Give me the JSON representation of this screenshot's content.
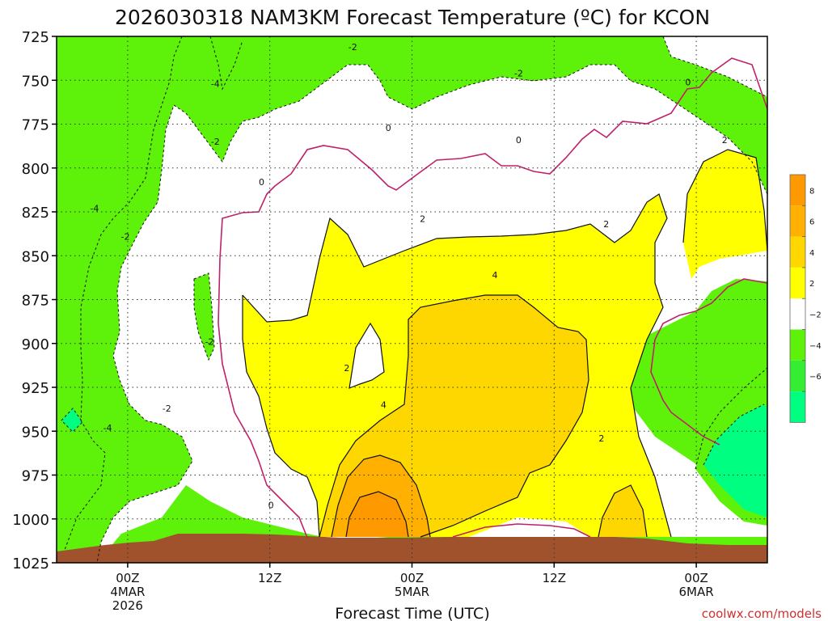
{
  "colors": {
    "band_lt_m6": "#00ff80",
    "band_m6_m4": "#33ee33",
    "band_m4_m2": "#5ef20a",
    "band_m2_2": "#ffffff",
    "band_2_4": "#ffff00",
    "band_4_6": "#ffd700",
    "band_6_8": "#ffb000",
    "band_gt_8": "#ff9900",
    "zero_line": "#c0206a",
    "terrain": "#a0522d",
    "credit": "#d03030"
  },
  "chart_data": {
    "type": "heatmap",
    "title": "2026030318 NAM3KM Forecast Temperature (ºC) for KCON",
    "xlabel": "Forecast Time (UTC)",
    "ylabel": "",
    "y_axis": {
      "unit": "hPa",
      "ticks": [
        725,
        750,
        775,
        800,
        825,
        850,
        875,
        900,
        925,
        950,
        975,
        1000,
        1025
      ],
      "range": [
        725,
        1025
      ],
      "inverted": true,
      "grid": true
    },
    "x_axis": {
      "range_hours": [
        -6,
        54
      ],
      "grid": true,
      "ticks": [
        {
          "hour": 0,
          "lines": [
            "00Z",
            "4MAR",
            "2026"
          ]
        },
        {
          "hour": 12,
          "lines": [
            "12Z"
          ]
        },
        {
          "hour": 24,
          "lines": [
            "00Z",
            "5MAR"
          ]
        },
        {
          "hour": 36,
          "lines": [
            "12Z"
          ]
        },
        {
          "hour": 48,
          "lines": [
            "00Z",
            "6MAR"
          ]
        }
      ]
    },
    "colorbar": {
      "levels": [
        -6,
        -4,
        -2,
        2,
        4,
        6,
        8
      ],
      "labels": [
        "8",
        "6",
        "4",
        "2",
        "−2",
        "−4",
        "−6"
      ]
    },
    "contour_labels": [
      {
        "text": "-2",
        "hour": 19.0,
        "p": 731
      },
      {
        "text": "-2",
        "hour": 33.0,
        "p": 746
      },
      {
        "text": "-4",
        "hour": 7.4,
        "p": 752
      },
      {
        "text": "-2",
        "hour": 7.4,
        "p": 785
      },
      {
        "text": "0",
        "hour": 22.0,
        "p": 777
      },
      {
        "text": "0",
        "hour": 33.0,
        "p": 784
      },
      {
        "text": "0",
        "hour": 47.3,
        "p": 751
      },
      {
        "text": "2",
        "hour": 50.4,
        "p": 784
      },
      {
        "text": "0",
        "hour": 11.3,
        "p": 808
      },
      {
        "text": "-4",
        "hour": -2.8,
        "p": 823
      },
      {
        "text": "-2",
        "hour": -0.2,
        "p": 839
      },
      {
        "text": "2",
        "hour": 24.9,
        "p": 829
      },
      {
        "text": "2",
        "hour": 40.4,
        "p": 832
      },
      {
        "text": "4",
        "hour": 31.0,
        "p": 861
      },
      {
        "text": "-2",
        "hour": 6.9,
        "p": 899
      },
      {
        "text": "2",
        "hour": 18.5,
        "p": 914
      },
      {
        "text": "-2",
        "hour": 3.3,
        "p": 937
      },
      {
        "text": "4",
        "hour": 21.6,
        "p": 935
      },
      {
        "text": "-4",
        "hour": -1.7,
        "p": 948
      },
      {
        "text": "2",
        "hour": 40.0,
        "p": 954
      },
      {
        "text": "0",
        "hour": 12.1,
        "p": 992
      }
    ],
    "credit": "coolwx.com/models"
  }
}
